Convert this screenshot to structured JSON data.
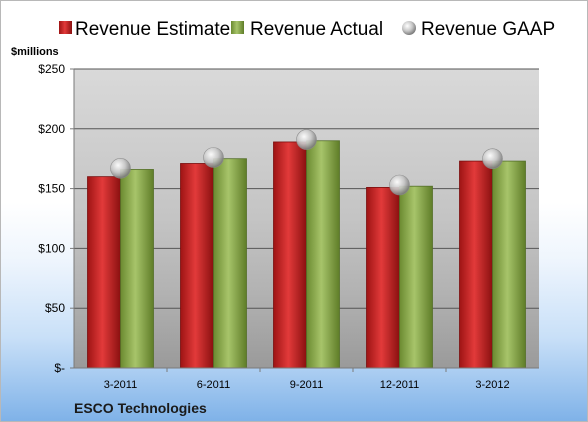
{
  "chart_data": {
    "type": "bar",
    "title": "",
    "unit_label": "$millions",
    "footer": "ESCO Technologies",
    "categories": [
      "3-2011",
      "6-2011",
      "9-2011",
      "12-2011",
      "3-2012"
    ],
    "series": [
      {
        "name": "Revenue Estimate",
        "kind": "bar",
        "color": "#cc2222",
        "values": [
          160,
          171,
          189,
          151,
          173
        ]
      },
      {
        "name": "Revenue Actual",
        "kind": "bar",
        "color": "#8fae4c",
        "values": [
          166,
          175,
          190,
          152,
          173
        ]
      },
      {
        "name": "Revenue GAAP",
        "kind": "marker",
        "color": "#a9a9a9",
        "values": [
          167,
          176,
          191,
          153,
          175
        ]
      }
    ],
    "ylim": [
      0,
      250
    ],
    "yticks": [
      0,
      50,
      100,
      150,
      200,
      250
    ],
    "ytick_labels": [
      "$-",
      "$50",
      "$100",
      "$150",
      "$200",
      "$250"
    ],
    "grid": true,
    "legend_position": "top"
  }
}
